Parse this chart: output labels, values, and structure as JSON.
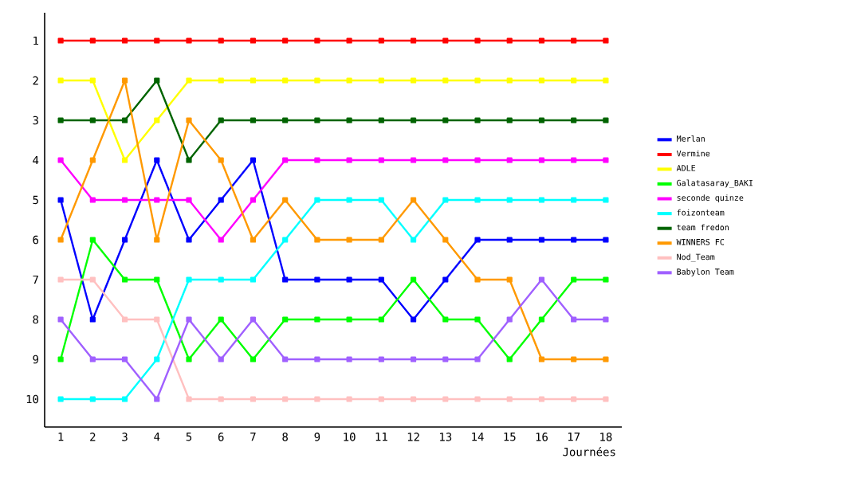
{
  "chart_data": {
    "type": "line",
    "xlabel": "Journées",
    "x": [
      1,
      2,
      3,
      4,
      5,
      6,
      7,
      8,
      9,
      10,
      11,
      12,
      13,
      14,
      15,
      16,
      17,
      18
    ],
    "xlim": [
      0.5,
      18.5
    ],
    "xticks": [
      1,
      2,
      3,
      4,
      5,
      6,
      7,
      8,
      9,
      10,
      11,
      12,
      13,
      14,
      15,
      16,
      17,
      18
    ],
    "ylim": [
      10.7,
      0.3
    ],
    "yticks": [
      1,
      2,
      3,
      4,
      5,
      6,
      7,
      8,
      9,
      10
    ],
    "marker": "square",
    "line_style": "solid",
    "grid": false,
    "legend": "right",
    "series": [
      {
        "name": "Merlan",
        "color": "#0000ff",
        "values": [
          5,
          8,
          6,
          4,
          6,
          5,
          4,
          7,
          7,
          7,
          7,
          8,
          7,
          6,
          6,
          6,
          6,
          6
        ]
      },
      {
        "name": "Vermine",
        "color": "#ff0000",
        "values": [
          1,
          1,
          1,
          1,
          1,
          1,
          1,
          1,
          1,
          1,
          1,
          1,
          1,
          1,
          1,
          1,
          1,
          1
        ]
      },
      {
        "name": "ADLE",
        "color": "#ffff00",
        "values": [
          2,
          2,
          4,
          3,
          2,
          2,
          2,
          2,
          2,
          2,
          2,
          2,
          2,
          2,
          2,
          2,
          2,
          2
        ]
      },
      {
        "name": "Galatasaray_BAKI",
        "color": "#00ff00",
        "values": [
          9,
          6,
          7,
          7,
          9,
          8,
          9,
          8,
          8,
          8,
          8,
          7,
          8,
          8,
          9,
          8,
          7,
          7
        ]
      },
      {
        "name": "seconde quinze",
        "color": "#ff00ff",
        "values": [
          4,
          5,
          5,
          5,
          5,
          6,
          5,
          4,
          4,
          4,
          4,
          4,
          4,
          4,
          4,
          4,
          4,
          4
        ]
      },
      {
        "name": "foizonteam",
        "color": "#00ffff",
        "values": [
          10,
          10,
          10,
          9,
          7,
          7,
          7,
          6,
          5,
          5,
          5,
          6,
          5,
          5,
          5,
          5,
          5,
          5
        ]
      },
      {
        "name": "team fredon",
        "color": "#006400",
        "values": [
          3,
          3,
          3,
          2,
          4,
          3,
          3,
          3,
          3,
          3,
          3,
          3,
          3,
          3,
          3,
          3,
          3,
          3
        ]
      },
      {
        "name": "WINNERS FC",
        "color": "#ff9900",
        "values": [
          6,
          4,
          2,
          6,
          3,
          4,
          6,
          5,
          6,
          6,
          6,
          5,
          6,
          7,
          7,
          9,
          9,
          9
        ]
      },
      {
        "name": "Nod_Team",
        "color": "#ffc0c0",
        "values": [
          7,
          7,
          8,
          8,
          10,
          10,
          10,
          10,
          10,
          10,
          10,
          10,
          10,
          10,
          10,
          10,
          10,
          10
        ]
      },
      {
        "name": "Babylon Team",
        "color": "#a060ff",
        "values": [
          8,
          9,
          9,
          10,
          8,
          9,
          8,
          9,
          9,
          9,
          9,
          9,
          9,
          9,
          8,
          7,
          8,
          8
        ]
      }
    ]
  }
}
